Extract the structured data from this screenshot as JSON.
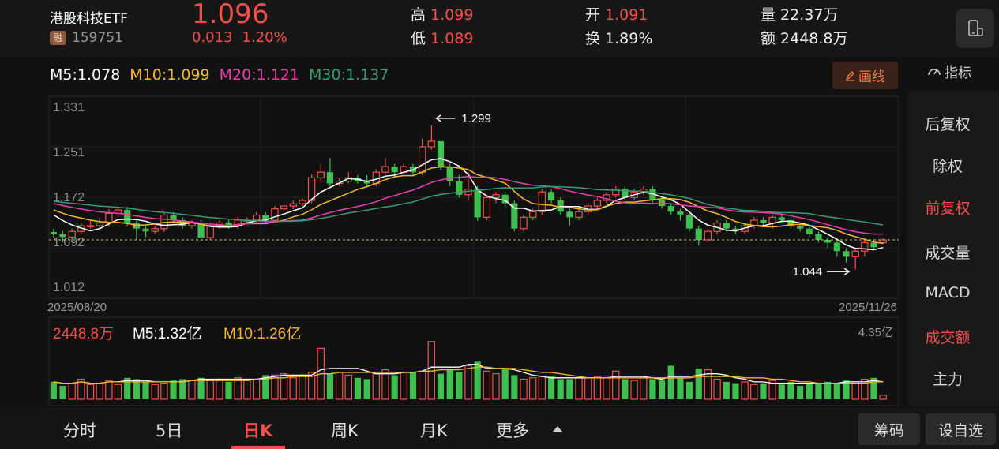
{
  "header": {
    "name": "港股科技ETF",
    "margin_badge": "融",
    "code": "159751",
    "price": "1.096",
    "change": "0.013",
    "change_pct": "1.20%",
    "high_label": "高",
    "high": "1.099",
    "low_label": "低",
    "low": "1.089",
    "open_label": "开",
    "open": "1.091",
    "turnover_label": "换",
    "turnover": "1.89%",
    "volume_label": "量",
    "volume": "22.37万",
    "amount_label": "额",
    "amount": "2448.8万"
  },
  "ma_legend": {
    "m5": "M5:1.078",
    "m10": "M10:1.099",
    "m20": "M20:1.121",
    "m30": "M30:1.137"
  },
  "toolbar": {
    "draw_label": "画线",
    "indicator_label": "指标"
  },
  "colors": {
    "up": "#f2504a",
    "down": "#3fbf4d",
    "ma5": "#ffffff",
    "ma10": "#f5b731",
    "ma20": "#e640b0",
    "ma30": "#3a9a73"
  },
  "side_menu": [
    {
      "label": "后复权",
      "active": false
    },
    {
      "label": "除权",
      "active": false
    },
    {
      "label": "前复权",
      "active": true
    },
    {
      "label": "成交量",
      "active": false
    },
    {
      "label": "MACD",
      "active": false
    },
    {
      "label": "成交额",
      "active": true
    },
    {
      "label": "主力",
      "active": false
    }
  ],
  "bottom_tabs": [
    {
      "label": "分时",
      "active": false
    },
    {
      "label": "5日",
      "active": false
    },
    {
      "label": "日K",
      "active": true
    },
    {
      "label": "周K",
      "active": false
    },
    {
      "label": "月K",
      "active": false
    },
    {
      "label": "更多",
      "active": false
    }
  ],
  "bottom_buttons": {
    "chips": "筹码",
    "watchlist": "设自选"
  },
  "chart_data": {
    "type": "candlestick",
    "y_ticks": [
      "1.331",
      "1.251",
      "1.172",
      "1.092",
      "1.012"
    ],
    "y_range": [
      1.012,
      1.331
    ],
    "x_start": "2025/08/20",
    "x_end": "2025/11/26",
    "current_price_line": 1.096,
    "annotation_high": "1.299",
    "annotation_low": "1.044",
    "candles": [
      [
        1.11,
        1.106,
        1.116,
        1.1
      ],
      [
        1.106,
        1.101,
        1.112,
        1.092
      ],
      [
        1.101,
        1.111,
        1.116,
        1.097
      ],
      [
        1.111,
        1.121,
        1.126,
        1.106
      ],
      [
        1.121,
        1.121,
        1.131,
        1.116
      ],
      [
        1.121,
        1.126,
        1.136,
        1.116
      ],
      [
        1.126,
        1.143,
        1.15,
        1.12
      ],
      [
        1.143,
        1.149,
        1.155,
        1.136
      ],
      [
        1.149,
        1.126,
        1.155,
        1.121
      ],
      [
        1.126,
        1.116,
        1.131,
        1.096
      ],
      [
        1.116,
        1.111,
        1.121,
        1.101
      ],
      [
        1.111,
        1.116,
        1.12,
        1.106
      ],
      [
        1.116,
        1.14,
        1.145,
        1.11
      ],
      [
        1.14,
        1.131,
        1.145,
        1.126
      ],
      [
        1.131,
        1.121,
        1.136,
        1.116
      ],
      [
        1.121,
        1.126,
        1.131,
        1.116
      ],
      [
        1.126,
        1.1,
        1.131,
        1.094
      ],
      [
        1.1,
        1.121,
        1.126,
        1.096
      ],
      [
        1.121,
        1.126,
        1.131,
        1.116
      ],
      [
        1.126,
        1.121,
        1.131,
        1.116
      ],
      [
        1.121,
        1.131,
        1.136,
        1.116
      ],
      [
        1.131,
        1.131,
        1.136,
        1.126
      ],
      [
        1.131,
        1.14,
        1.145,
        1.126
      ],
      [
        1.14,
        1.131,
        1.145,
        1.126
      ],
      [
        1.131,
        1.151,
        1.156,
        1.126
      ],
      [
        1.151,
        1.156,
        1.16,
        1.146
      ],
      [
        1.156,
        1.16,
        1.166,
        1.15
      ],
      [
        1.16,
        1.166,
        1.17,
        1.156
      ],
      [
        1.166,
        1.206,
        1.212,
        1.161
      ],
      [
        1.206,
        1.216,
        1.231,
        1.201
      ],
      [
        1.216,
        1.196,
        1.241,
        1.191
      ],
      [
        1.196,
        1.2,
        1.206,
        1.191
      ],
      [
        1.2,
        1.206,
        1.216,
        1.196
      ],
      [
        1.206,
        1.2,
        1.211,
        1.196
      ],
      [
        1.2,
        1.196,
        1.211,
        1.191
      ],
      [
        1.196,
        1.216,
        1.221,
        1.191
      ],
      [
        1.216,
        1.226,
        1.241,
        1.211
      ],
      [
        1.226,
        1.216,
        1.231,
        1.206
      ],
      [
        1.216,
        1.226,
        1.231,
        1.211
      ],
      [
        1.226,
        1.216,
        1.231,
        1.211
      ],
      [
        1.216,
        1.261,
        1.276,
        1.211
      ],
      [
        1.261,
        1.271,
        1.299,
        1.256
      ],
      [
        1.271,
        1.226,
        1.271,
        1.22
      ],
      [
        1.226,
        1.2,
        1.231,
        1.191
      ],
      [
        1.2,
        1.176,
        1.211,
        1.171
      ],
      [
        1.176,
        1.186,
        1.216,
        1.166
      ],
      [
        1.186,
        1.136,
        1.191,
        1.13
      ],
      [
        1.136,
        1.171,
        1.176,
        1.131
      ],
      [
        1.171,
        1.176,
        1.181,
        1.161
      ],
      [
        1.176,
        1.161,
        1.181,
        1.151
      ],
      [
        1.161,
        1.116,
        1.166,
        1.111
      ],
      [
        1.116,
        1.136,
        1.141,
        1.111
      ],
      [
        1.136,
        1.146,
        1.151,
        1.131
      ],
      [
        1.146,
        1.181,
        1.186,
        1.141
      ],
      [
        1.181,
        1.166,
        1.186,
        1.161
      ],
      [
        1.166,
        1.146,
        1.171,
        1.141
      ],
      [
        1.146,
        1.136,
        1.151,
        1.121
      ],
      [
        1.136,
        1.146,
        1.151,
        1.131
      ],
      [
        1.146,
        1.156,
        1.161,
        1.141
      ],
      [
        1.156,
        1.166,
        1.171,
        1.151
      ],
      [
        1.166,
        1.176,
        1.181,
        1.161
      ],
      [
        1.176,
        1.186,
        1.191,
        1.171
      ],
      [
        1.186,
        1.171,
        1.191,
        1.166
      ],
      [
        1.171,
        1.181,
        1.186,
        1.166
      ],
      [
        1.181,
        1.186,
        1.191,
        1.176
      ],
      [
        1.186,
        1.166,
        1.191,
        1.161
      ],
      [
        1.166,
        1.156,
        1.171,
        1.151
      ],
      [
        1.156,
        1.146,
        1.161,
        1.141
      ],
      [
        1.146,
        1.141,
        1.151,
        1.131
      ],
      [
        1.141,
        1.116,
        1.146,
        1.111
      ],
      [
        1.116,
        1.096,
        1.121,
        1.086
      ],
      [
        1.096,
        1.111,
        1.116,
        1.091
      ],
      [
        1.111,
        1.126,
        1.131,
        1.106
      ],
      [
        1.126,
        1.116,
        1.131,
        1.111
      ],
      [
        1.116,
        1.111,
        1.121,
        1.106
      ],
      [
        1.111,
        1.121,
        1.126,
        1.106
      ],
      [
        1.121,
        1.131,
        1.136,
        1.116
      ],
      [
        1.131,
        1.126,
        1.136,
        1.121
      ],
      [
        1.126,
        1.136,
        1.141,
        1.116
      ],
      [
        1.136,
        1.131,
        1.141,
        1.126
      ],
      [
        1.131,
        1.121,
        1.141,
        1.116
      ],
      [
        1.121,
        1.116,
        1.126,
        1.111
      ],
      [
        1.116,
        1.106,
        1.121,
        1.101
      ],
      [
        1.106,
        1.096,
        1.111,
        1.091
      ],
      [
        1.096,
        1.091,
        1.101,
        1.081
      ],
      [
        1.091,
        1.076,
        1.096,
        1.066
      ],
      [
        1.076,
        1.066,
        1.081,
        1.056
      ],
      [
        1.066,
        1.076,
        1.081,
        1.044
      ],
      [
        1.076,
        1.091,
        1.096,
        1.066
      ],
      [
        1.091,
        1.083,
        1.096,
        1.079
      ],
      [
        1.091,
        1.096,
        1.099,
        1.089
      ]
    ],
    "volume": {
      "label": "2448.8万",
      "m5": "M5:1.32亿",
      "m10": "M10:1.26亿",
      "max_label": "4.35亿",
      "values": [
        1.3,
        1.0,
        1.2,
        1.5,
        1.1,
        1.2,
        1.4,
        1.1,
        1.6,
        1.5,
        1.3,
        1.1,
        1.2,
        1.4,
        1.5,
        1.4,
        1.6,
        1.4,
        1.5,
        1.3,
        1.6,
        1.4,
        1.5,
        1.8,
        1.8,
        1.9,
        1.6,
        1.8,
        2.0,
        3.8,
        1.9,
        2.0,
        1.8,
        1.6,
        1.5,
        1.9,
        2.2,
        1.8,
        2.0,
        2.0,
        2.1,
        4.3,
        1.9,
        2.2,
        2.0,
        2.5,
        2.8,
        2.1,
        1.9,
        2.3,
        1.8,
        1.5,
        1.6,
        1.7,
        1.7,
        1.5,
        1.5,
        1.6,
        1.6,
        1.7,
        1.6,
        2.1,
        1.5,
        1.4,
        1.6,
        1.5,
        1.4,
        2.5,
        1.6,
        1.3,
        2.3,
        2.2,
        1.5,
        1.3,
        1.2,
        1.3,
        1.1,
        1.2,
        1.4,
        1.1,
        1.3,
        1.0,
        1.2,
        1.2,
        1.3,
        1.2,
        1.4,
        1.3,
        1.5,
        1.6,
        0.3
      ],
      "ma5": [
        1.3,
        1.2,
        1.2,
        1.3,
        1.2,
        1.2,
        1.3,
        1.3,
        1.4,
        1.4,
        1.4,
        1.3,
        1.3,
        1.3,
        1.3,
        1.4,
        1.5,
        1.5,
        1.5,
        1.5,
        1.5,
        1.5,
        1.5,
        1.6,
        1.7,
        1.8,
        1.8,
        1.8,
        1.8,
        2.2,
        2.3,
        2.3,
        2.3,
        2.3,
        2.1,
        1.9,
        1.9,
        1.9,
        2.0,
        2.0,
        2.1,
        2.4,
        2.4,
        2.4,
        2.4,
        2.6,
        2.6,
        2.3,
        2.3,
        2.3,
        2.2,
        2.0,
        1.8,
        1.7,
        1.6,
        1.6,
        1.6,
        1.6,
        1.6,
        1.6,
        1.6,
        1.7,
        1.7,
        1.7,
        1.7,
        1.6,
        1.5,
        1.7,
        1.7,
        1.7,
        1.8,
        1.9,
        1.9,
        1.8,
        1.6,
        1.5,
        1.3,
        1.3,
        1.2,
        1.2,
        1.2,
        1.2,
        1.2,
        1.2,
        1.2,
        1.2,
        1.3,
        1.3,
        1.3,
        1.4,
        1.3
      ],
      "ma10": [
        1.3,
        1.2,
        1.2,
        1.3,
        1.2,
        1.2,
        1.3,
        1.3,
        1.3,
        1.3,
        1.3,
        1.3,
        1.3,
        1.3,
        1.3,
        1.4,
        1.4,
        1.4,
        1.4,
        1.4,
        1.4,
        1.4,
        1.5,
        1.5,
        1.6,
        1.6,
        1.7,
        1.7,
        1.7,
        1.9,
        1.9,
        2.0,
        2.0,
        2.0,
        2.0,
        2.0,
        2.0,
        2.0,
        2.0,
        2.0,
        2.1,
        2.1,
        2.2,
        2.2,
        2.2,
        2.3,
        2.4,
        2.4,
        2.3,
        2.3,
        2.3,
        2.2,
        2.1,
        2.0,
        2.0,
        1.9,
        1.8,
        1.7,
        1.6,
        1.6,
        1.6,
        1.6,
        1.6,
        1.6,
        1.6,
        1.6,
        1.6,
        1.6,
        1.6,
        1.6,
        1.7,
        1.7,
        1.7,
        1.7,
        1.7,
        1.6,
        1.6,
        1.6,
        1.5,
        1.5,
        1.4,
        1.3,
        1.3,
        1.2,
        1.2,
        1.2,
        1.2,
        1.2,
        1.2,
        1.3,
        1.3
      ]
    }
  }
}
